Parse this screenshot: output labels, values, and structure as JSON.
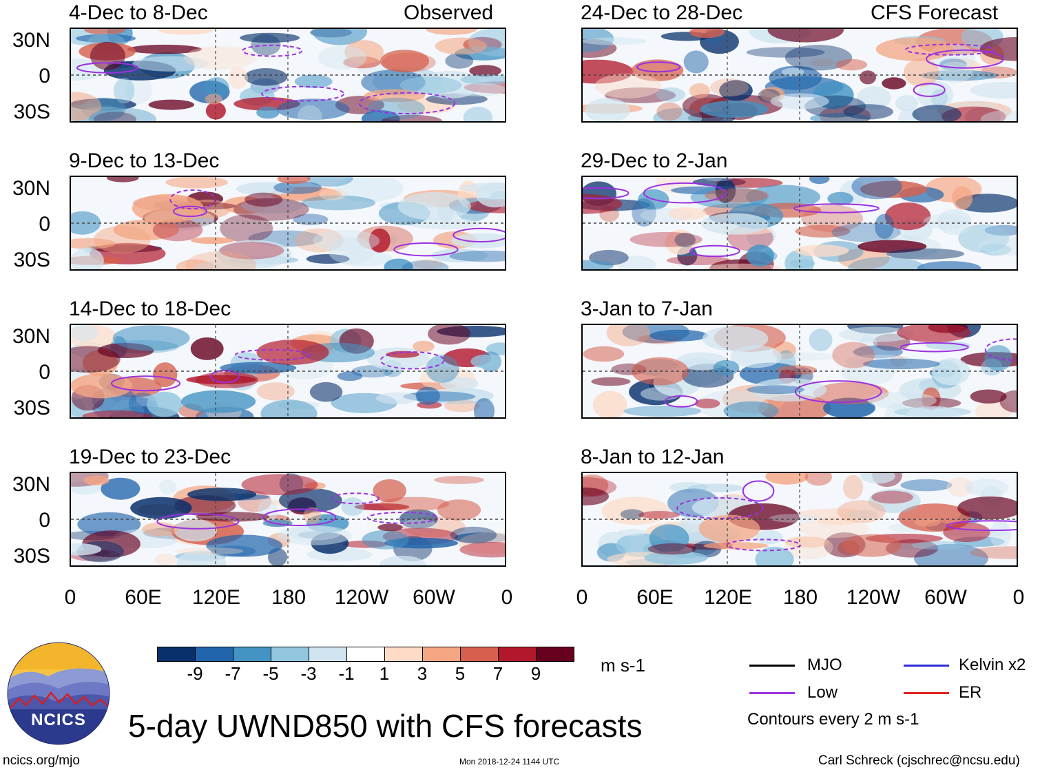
{
  "left_column_label": "Observed",
  "right_column_label": "CFS Forecast",
  "lat_labels": [
    "30N",
    "0",
    "30S"
  ],
  "lon_labels": [
    "0",
    "60E",
    "120E",
    "180",
    "120W",
    "60W",
    "0"
  ],
  "chart_data": [
    {
      "type": "heatmap",
      "title": "4-Dec to 8-Dec",
      "column": "Observed",
      "xlabel": "",
      "ylabel": "",
      "x_ticks": [
        "0",
        "60E",
        "120E",
        "180",
        "120W",
        "60W",
        "0"
      ],
      "y_ticks": [
        "30N",
        "0",
        "30S"
      ],
      "ylim": [
        -40,
        40
      ],
      "field": "UWND850 anomaly (m s-1)"
    },
    {
      "type": "heatmap",
      "title": "9-Dec to 13-Dec",
      "column": "Observed",
      "xlabel": "",
      "ylabel": "",
      "x_ticks": [
        "0",
        "60E",
        "120E",
        "180",
        "120W",
        "60W",
        "0"
      ],
      "y_ticks": [
        "30N",
        "0",
        "30S"
      ],
      "ylim": [
        -40,
        40
      ],
      "field": "UWND850 anomaly (m s-1)"
    },
    {
      "type": "heatmap",
      "title": "14-Dec to 18-Dec",
      "column": "Observed",
      "xlabel": "",
      "ylabel": "",
      "x_ticks": [
        "0",
        "60E",
        "120E",
        "180",
        "120W",
        "60W",
        "0"
      ],
      "y_ticks": [
        "30N",
        "0",
        "30S"
      ],
      "ylim": [
        -40,
        40
      ],
      "field": "UWND850 anomaly (m s-1)"
    },
    {
      "type": "heatmap",
      "title": "19-Dec to 23-Dec",
      "column": "Observed",
      "xlabel": "",
      "ylabel": "",
      "x_ticks": [
        "0",
        "60E",
        "120E",
        "180",
        "120W",
        "60W",
        "0"
      ],
      "y_ticks": [
        "30N",
        "0",
        "30S"
      ],
      "ylim": [
        -40,
        40
      ],
      "field": "UWND850 anomaly (m s-1)"
    },
    {
      "type": "heatmap",
      "title": "24-Dec to 28-Dec",
      "column": "CFS Forecast",
      "xlabel": "",
      "ylabel": "",
      "x_ticks": [
        "0",
        "60E",
        "120E",
        "180",
        "120W",
        "60W",
        "0"
      ],
      "y_ticks": [
        "30N",
        "0",
        "30S"
      ],
      "ylim": [
        -40,
        40
      ],
      "field": "UWND850 anomaly (m s-1)"
    },
    {
      "type": "heatmap",
      "title": "29-Dec to 2-Jan",
      "column": "CFS Forecast",
      "xlabel": "",
      "ylabel": "",
      "x_ticks": [
        "0",
        "60E",
        "120E",
        "180",
        "120W",
        "60W",
        "0"
      ],
      "y_ticks": [
        "30N",
        "0",
        "30S"
      ],
      "ylim": [
        -40,
        40
      ],
      "field": "UWND850 anomaly (m s-1)"
    },
    {
      "type": "heatmap",
      "title": "3-Jan to 7-Jan",
      "column": "CFS Forecast",
      "xlabel": "",
      "ylabel": "",
      "x_ticks": [
        "0",
        "60E",
        "120E",
        "180",
        "120W",
        "60W",
        "0"
      ],
      "y_ticks": [
        "30N",
        "0",
        "30S"
      ],
      "ylim": [
        -40,
        40
      ],
      "field": "UWND850 anomaly (m s-1)"
    },
    {
      "type": "heatmap",
      "title": "8-Jan to 12-Jan",
      "column": "CFS Forecast",
      "xlabel": "",
      "ylabel": "",
      "x_ticks": [
        "0",
        "60E",
        "120E",
        "180",
        "120W",
        "60W",
        "0"
      ],
      "y_ticks": [
        "30N",
        "0",
        "30S"
      ],
      "ylim": [
        -40,
        40
      ],
      "field": "UWND850 anomaly (m s-1)"
    }
  ],
  "colorbar": {
    "ticks": [
      "-9",
      "-7",
      "-5",
      "-3",
      "-1",
      "1",
      "3",
      "5",
      "7",
      "9"
    ],
    "colors": [
      "#08306b",
      "#2166ac",
      "#4393c3",
      "#92c5de",
      "#d1e5f0",
      "#ffffff",
      "#fddbc7",
      "#f4a582",
      "#d6604d",
      "#b2182b",
      "#67001f"
    ],
    "units": "m s-1"
  },
  "legend": {
    "items": [
      {
        "label": "MJO",
        "color": "#000000"
      },
      {
        "label": "Kelvin x2",
        "color": "#2b2bd6"
      },
      {
        "label": "Low",
        "color": "#9b30e0"
      },
      {
        "label": "ER",
        "color": "#e0201b"
      }
    ],
    "note": "Contours every 2 m s-1"
  },
  "main_title": "5-day UWND850 with CFS forecasts",
  "logo_text": "NCICS",
  "footer": {
    "url": "ncics.org/mjo",
    "timestamp": "Mon 2018-12-24 1144 UTC",
    "credit": "Carl Schreck (cjschrec@ncsu.edu)"
  }
}
